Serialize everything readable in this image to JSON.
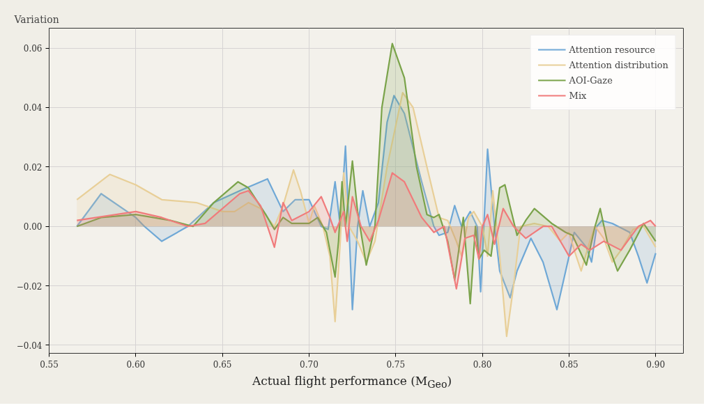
{
  "chart_data": {
    "type": "area",
    "ylabel": "Variation",
    "xlabel": "Actual flight performance (M$_{Geo}$)",
    "xlim": [
      0.55,
      0.916
    ],
    "ylim": [
      -0.0427,
      0.0667
    ],
    "xticks": [
      {
        "value": 0.55,
        "label": "0.55"
      },
      {
        "value": 0.6,
        "label": "0.60"
      },
      {
        "value": 0.65,
        "label": "0.65"
      },
      {
        "value": 0.7,
        "label": "0.70"
      },
      {
        "value": 0.75,
        "label": "0.75"
      },
      {
        "value": 0.8,
        "label": "0.80"
      },
      {
        "value": 0.85,
        "label": "0.85"
      },
      {
        "value": 0.9,
        "label": "0.90"
      }
    ],
    "yticks": [
      {
        "value": -0.04,
        "label": "−0.04"
      },
      {
        "value": -0.02,
        "label": "−0.02"
      },
      {
        "value": 0,
        "label": "0.00"
      },
      {
        "value": 0.02,
        "label": "0.02"
      },
      {
        "value": 0.04,
        "label": "0.04"
      },
      {
        "value": 0.06,
        "label": "0.06"
      }
    ],
    "grid": true,
    "legend": "top right",
    "series": [
      {
        "name": "Attention resource",
        "color": "#6fa8d6",
        "x": [
          0.566,
          0.58,
          0.6,
          0.605,
          0.615,
          0.63,
          0.645,
          0.66,
          0.676,
          0.685,
          0.692,
          0.7,
          0.707,
          0.711,
          0.715,
          0.718,
          0.721,
          0.723,
          0.725,
          0.728,
          0.731,
          0.735,
          0.74,
          0.745,
          0.749,
          0.755,
          0.765,
          0.772,
          0.775,
          0.78,
          0.784,
          0.788,
          0.793,
          0.797,
          0.799,
          0.803,
          0.807,
          0.81,
          0.816,
          0.82,
          0.828,
          0.835,
          0.843,
          0.85,
          0.853,
          0.86,
          0.863,
          0.866,
          0.869,
          0.875,
          0.885,
          0.89,
          0.895,
          0.9
        ],
        "values": [
          0.0,
          0.011,
          0.003,
          0.0,
          -0.005,
          0.0,
          0.008,
          0.012,
          0.016,
          0.005,
          0.009,
          0.009,
          0.0,
          -0.001,
          0.015,
          0.0,
          0.027,
          0.0,
          -0.028,
          0.0,
          0.012,
          0.0,
          0.008,
          0.035,
          0.044,
          0.038,
          0.015,
          0.0,
          -0.003,
          -0.002,
          0.007,
          0.0,
          0.005,
          0.0,
          -0.022,
          0.026,
          0.0,
          -0.015,
          -0.024,
          -0.015,
          -0.004,
          -0.012,
          -0.028,
          -0.01,
          -0.002,
          -0.007,
          -0.012,
          0.0,
          0.002,
          0.001,
          -0.002,
          -0.01,
          -0.019,
          -0.009
        ]
      },
      {
        "name": "Attention distribution",
        "color": "#e8cf98",
        "x": [
          0.566,
          0.585,
          0.6,
          0.615,
          0.635,
          0.65,
          0.657,
          0.665,
          0.672,
          0.68,
          0.685,
          0.691,
          0.695,
          0.7,
          0.703,
          0.708,
          0.712,
          0.715,
          0.718,
          0.72,
          0.723,
          0.728,
          0.733,
          0.738,
          0.745,
          0.754,
          0.76,
          0.768,
          0.775,
          0.78,
          0.785,
          0.788,
          0.792,
          0.795,
          0.8,
          0.803,
          0.806,
          0.81,
          0.814,
          0.818,
          0.822,
          0.83,
          0.838,
          0.845,
          0.85,
          0.853,
          0.857,
          0.862,
          0.865,
          0.87,
          0.875,
          0.88,
          0.887,
          0.893,
          0.9
        ],
        "values": [
          0.009,
          0.0175,
          0.014,
          0.009,
          0.008,
          0.005,
          0.005,
          0.008,
          0.006,
          0.0,
          0.007,
          0.019,
          0.012,
          0.001,
          0.007,
          0.0,
          -0.01,
          -0.032,
          -0.005,
          0.018,
          0.0,
          -0.005,
          -0.012,
          -0.005,
          0.02,
          0.045,
          0.04,
          0.02,
          0.003,
          0.002,
          -0.005,
          -0.01,
          0.003,
          0.005,
          0.0,
          -0.01,
          0.012,
          -0.01,
          -0.037,
          -0.02,
          0.0,
          0.001,
          0.0,
          -0.005,
          -0.002,
          -0.008,
          -0.015,
          -0.005,
          0.0,
          -0.004,
          -0.012,
          -0.008,
          -0.001,
          0.0,
          -0.007
        ]
      },
      {
        "name": "AOI-Gaze",
        "color": "#7aa34a",
        "x": [
          0.566,
          0.58,
          0.6,
          0.62,
          0.633,
          0.645,
          0.659,
          0.665,
          0.675,
          0.68,
          0.685,
          0.69,
          0.7,
          0.705,
          0.71,
          0.715,
          0.717,
          0.719,
          0.721,
          0.725,
          0.728,
          0.733,
          0.738,
          0.742,
          0.748,
          0.755,
          0.762,
          0.768,
          0.772,
          0.775,
          0.78,
          0.784,
          0.789,
          0.793,
          0.796,
          0.798,
          0.801,
          0.805,
          0.81,
          0.813,
          0.82,
          0.825,
          0.83,
          0.84,
          0.848,
          0.852,
          0.86,
          0.865,
          0.868,
          0.872,
          0.878,
          0.885,
          0.893,
          0.9
        ],
        "values": [
          0.0,
          0.003,
          0.004,
          0.002,
          0.0,
          0.008,
          0.015,
          0.013,
          0.004,
          -0.001,
          0.003,
          0.001,
          0.001,
          0.003,
          -0.002,
          -0.017,
          -0.005,
          0.015,
          0.0,
          0.022,
          0.005,
          -0.013,
          0.0,
          0.04,
          0.0615,
          0.05,
          0.02,
          0.004,
          0.003,
          0.004,
          -0.005,
          -0.018,
          0.003,
          -0.026,
          0.0,
          -0.011,
          -0.008,
          -0.01,
          0.013,
          0.014,
          -0.003,
          0.002,
          0.006,
          0.001,
          -0.002,
          -0.003,
          -0.013,
          0.0,
          0.006,
          -0.005,
          -0.015,
          -0.008,
          0.001,
          -0.005
        ]
      },
      {
        "name": "Mix",
        "color": "#f07b7b",
        "x": [
          0.566,
          0.6,
          0.615,
          0.63,
          0.64,
          0.66,
          0.665,
          0.672,
          0.68,
          0.685,
          0.69,
          0.7,
          0.707,
          0.712,
          0.715,
          0.72,
          0.722,
          0.725,
          0.73,
          0.735,
          0.74,
          0.748,
          0.755,
          0.765,
          0.772,
          0.778,
          0.785,
          0.79,
          0.795,
          0.798,
          0.8,
          0.803,
          0.807,
          0.812,
          0.818,
          0.825,
          0.835,
          0.84,
          0.845,
          0.85,
          0.857,
          0.862,
          0.87,
          0.88,
          0.89,
          0.897,
          0.9
        ],
        "values": [
          0.002,
          0.005,
          0.003,
          0.0,
          0.001,
          0.011,
          0.012,
          0.007,
          -0.007,
          0.008,
          0.002,
          0.005,
          0.01,
          0.003,
          -0.002,
          0.005,
          -0.005,
          0.01,
          0.0,
          -0.005,
          0.002,
          0.018,
          0.015,
          0.003,
          -0.002,
          0.0,
          -0.021,
          -0.004,
          -0.003,
          -0.011,
          0.0,
          0.004,
          -0.006,
          0.006,
          0.0,
          -0.004,
          0.0,
          0.0,
          -0.005,
          -0.01,
          -0.006,
          -0.008,
          -0.005,
          -0.008,
          0.0,
          0.002,
          0.0
        ]
      }
    ]
  }
}
